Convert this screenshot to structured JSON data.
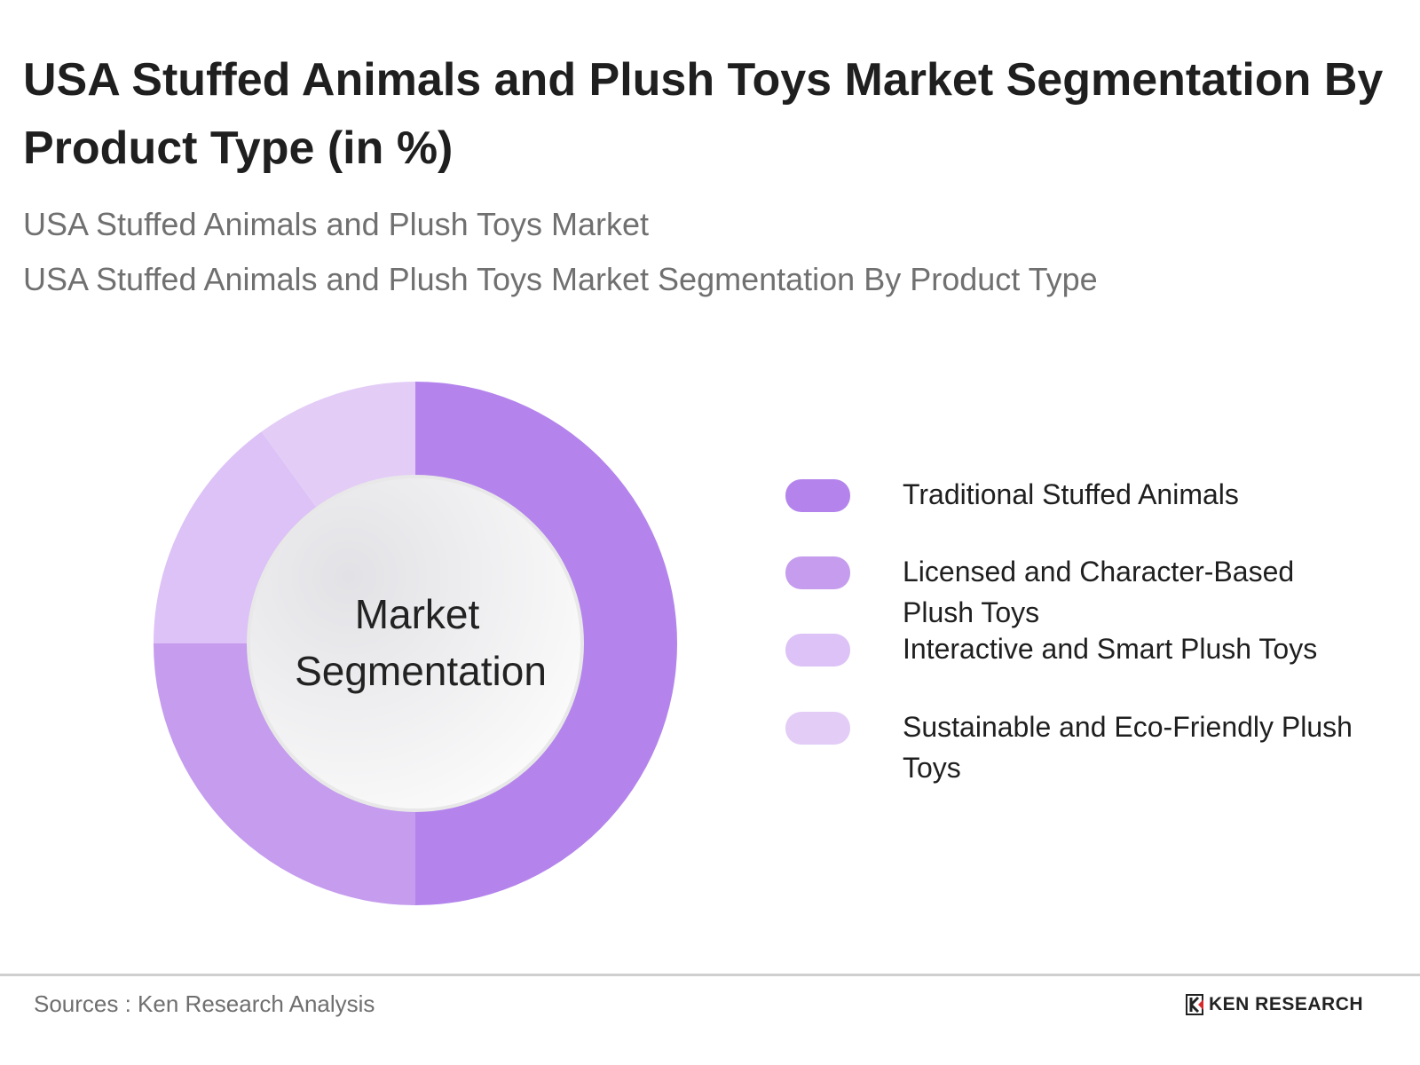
{
  "title": "USA Stuffed Animals and Plush Toys Market Segmentation By Product Type (in %)",
  "subtitles": [
    "USA Stuffed Animals and Plush Toys Market",
    "USA Stuffed Animals and Plush Toys Market Segmentation By Product Type"
  ],
  "chart_data": {
    "type": "pie",
    "variant": "donut",
    "center_label": "Market Segmentation",
    "center_label_lines": [
      "Market",
      "Segmentation"
    ],
    "categories": [
      "Traditional Stuffed Animals",
      "Licensed and Character-Based Plush Toys",
      "Interactive and Smart Plush Toys",
      "Sustainable and Eco-Friendly Plush Toys"
    ],
    "values": [
      50,
      25,
      15,
      10
    ],
    "colors": [
      "#b484ec",
      "#c59cee",
      "#dcc2f6",
      "#e3cdf7"
    ],
    "legend_position": "right"
  },
  "footer": {
    "source": "Sources : Ken Research Analysis",
    "logo_text": "KEN RESEARCH"
  }
}
